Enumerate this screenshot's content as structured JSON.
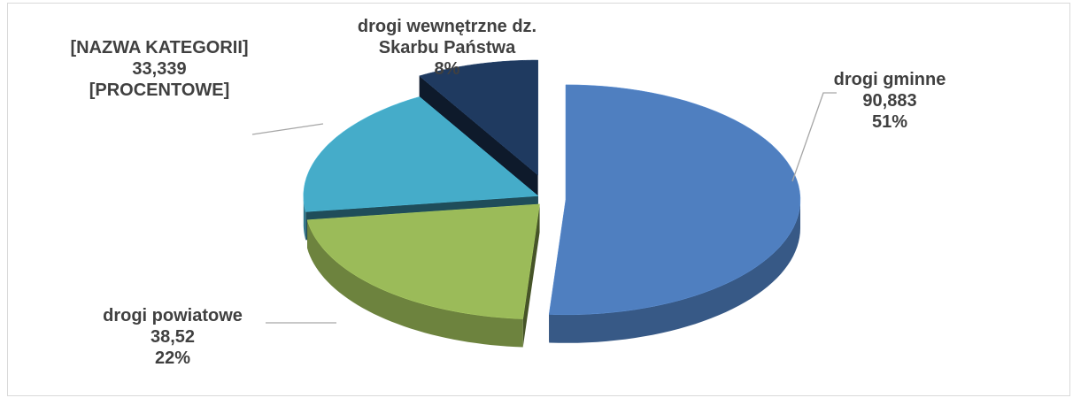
{
  "chart_data": {
    "type": "pie",
    "categories": [
      "drogi gminne",
      "drogi powiatowe",
      "[NAZWA KATEGORII]",
      "drogi wewnętrzne dz. Skarbu Państwa"
    ],
    "values": [
      90.883,
      38.52,
      33.339,
      15
    ],
    "value_labels": [
      "90,883",
      "38,52",
      "33,339",
      null
    ],
    "percent_labels": [
      "51%",
      "22%",
      "[PROCENTOWE]",
      "8%"
    ],
    "colors": [
      "#4f7fc0",
      "#9bbb59",
      "#45acc9",
      "#1f3a60"
    ]
  }
}
